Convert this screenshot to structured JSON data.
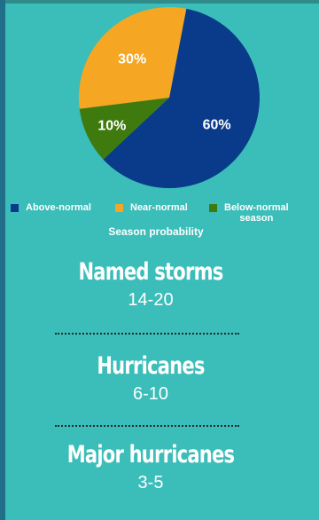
{
  "chart_data": {
    "type": "pie",
    "title": "Season probability",
    "slices": [
      {
        "name": "Above-normal",
        "value": 60,
        "label": "60%",
        "color": "#0a3a8a"
      },
      {
        "name": "Near-normal",
        "value": 30,
        "label": "30%",
        "color": "#f5a623"
      },
      {
        "name": "Below-normal season",
        "value": 10,
        "label": "10%",
        "color": "#3f7a0f"
      }
    ],
    "legend": {
      "placement": "bottom",
      "items": [
        "Above-normal",
        "Near-normal",
        "Below-normal\nseason"
      ]
    }
  },
  "stats": [
    {
      "label": "Named storms",
      "value": "14-20"
    },
    {
      "label": "Hurricanes",
      "value": "6-10"
    },
    {
      "label": "Major hurricanes",
      "value": "3-5"
    }
  ]
}
